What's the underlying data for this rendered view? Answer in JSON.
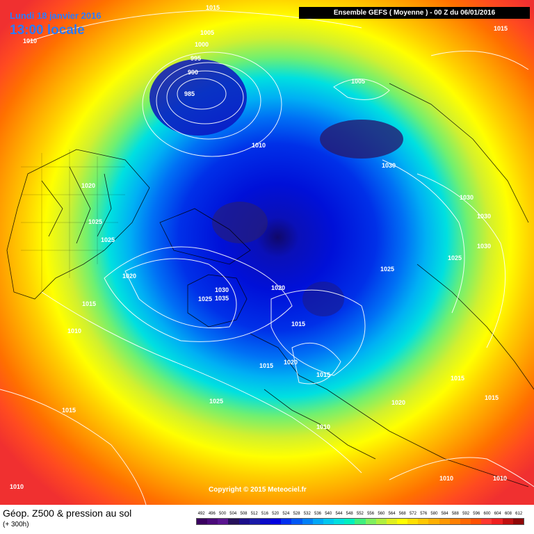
{
  "header": {
    "date": "Lundi 18 janvier 2016",
    "time": "13:00 locale",
    "run_info": "Ensemble GEFS  ( Moyenne )  -  00 Z du 06/01/2016"
  },
  "copyright": "Copyright © 2015 Meteociel.fr",
  "footer": {
    "title": "Géop. Z500 & pression au sol",
    "subtitle": "(+ 300h)"
  },
  "color_scale": {
    "labels": [
      "492",
      "496",
      "500",
      "504",
      "508",
      "512",
      "516",
      "520",
      "524",
      "528",
      "532",
      "536",
      "540",
      "544",
      "548",
      "552",
      "556",
      "560",
      "564",
      "568",
      "572",
      "576",
      "580",
      "584",
      "588",
      "592",
      "596",
      "600",
      "604",
      "608",
      "612"
    ],
    "colors": [
      "#3a0060",
      "#4b0a7a",
      "#5a1490",
      "#26105a",
      "#1c0e8a",
      "#1a1aa8",
      "#0a0ac8",
      "#0000e0",
      "#0030f0",
      "#0058f5",
      "#0080f8",
      "#00a8f8",
      "#00c8f0",
      "#00e0e0",
      "#00f0c0",
      "#40f080",
      "#80f060",
      "#b0f040",
      "#e0f020",
      "#ffff00",
      "#ffe000",
      "#ffc800",
      "#ffb000",
      "#ff9800",
      "#ff8000",
      "#ff6800",
      "#ff5000",
      "#ff3830",
      "#f02020",
      "#c01010",
      "#900808"
    ]
  },
  "isobar_labels": [
    "1015",
    "1005",
    "1000",
    "995",
    "990",
    "985",
    "1010",
    "1010",
    "1005",
    "1015",
    "1030",
    "1030",
    "1030",
    "1030",
    "1020",
    "1025",
    "1025",
    "1025",
    "1025",
    "1020",
    "1030",
    "1035",
    "1025",
    "1020",
    "1015",
    "1015",
    "1010",
    "1015",
    "1020",
    "1015",
    "1015",
    "1025",
    "1015",
    "1010",
    "1020",
    "1015",
    "1010",
    "1010",
    "1010"
  ]
}
